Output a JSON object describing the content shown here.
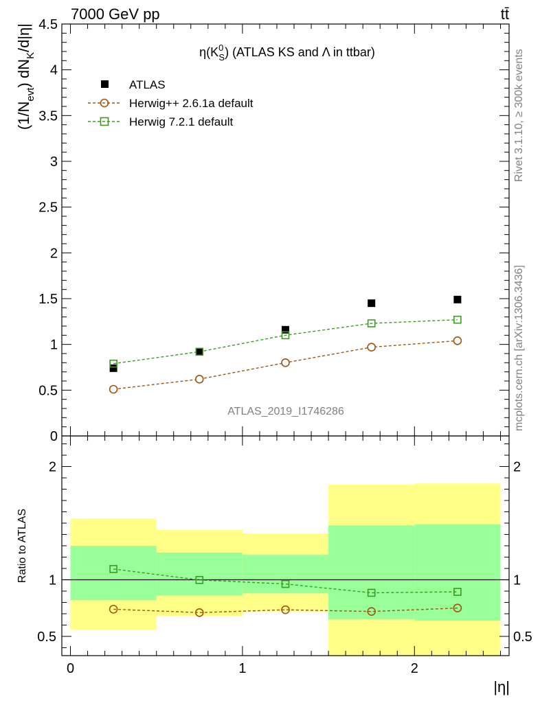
{
  "header": {
    "energy_label": "7000 GeV pp",
    "process_label": "tt̄"
  },
  "side": {
    "rivet": "Rivet 3.1.10, ≥ 300k events",
    "mcplots": "mcplots.cern.ch [arXiv:1306.3436]"
  },
  "watermark": "ATLAS_2019_I1746286",
  "colors": {
    "atlas": "#000000",
    "herwig261": "#a0520a",
    "herwig721": "#3c9a1e",
    "band_outer": "#ffff88",
    "band_inner": "#99ff99"
  },
  "chart_data": [
    {
      "type": "scatter",
      "title": "η(K⁰S) (ATLAS KS and Λ in ttbar)",
      "title_parts": {
        "eta": "η(K",
        "sup": "0",
        "sub": "S",
        "close": ")",
        "rest": " (ATLAS KS and Λ in ttbar)"
      },
      "ylabel_parts": {
        "a": "(1/N",
        "sub1": "evt",
        "b": ") dN",
        "sub2": "K",
        "c": "/d|η|"
      },
      "x_range": [
        -0.05,
        2.55
      ],
      "ylim": [
        0,
        4.5
      ],
      "yticks": [
        0,
        0.5,
        1,
        1.5,
        2,
        2.5,
        3,
        3.5,
        4,
        4.5
      ],
      "ytick_labels": [
        "0",
        "0.5",
        "1",
        "1.5",
        "2",
        "2.5",
        "3",
        "3.5",
        "4",
        "4.5"
      ],
      "legend_position": "top-left",
      "series": [
        {
          "name": "ATLAS",
          "marker": "filled-square",
          "x": [
            0.25,
            0.75,
            1.25,
            1.75,
            2.25
          ],
          "y": [
            0.74,
            0.92,
            1.16,
            1.45,
            1.49
          ]
        },
        {
          "name": "Herwig++ 2.6.1a default",
          "marker": "open-circle",
          "x": [
            0.25,
            0.75,
            1.25,
            1.75,
            2.25
          ],
          "y": [
            0.51,
            0.62,
            0.8,
            0.97,
            1.04
          ]
        },
        {
          "name": "Herwig 7.2.1 default",
          "marker": "open-square",
          "x": [
            0.25,
            0.75,
            1.25,
            1.75,
            2.25
          ],
          "y": [
            0.79,
            0.92,
            1.1,
            1.23,
            1.27
          ]
        }
      ]
    },
    {
      "type": "line",
      "ylabel": "Ratio to ATLAS",
      "xlabel": "|η|",
      "x_range": [
        -0.05,
        2.55
      ],
      "ylim": [
        0.33,
        2.27
      ],
      "xticks": [
        0,
        1,
        2
      ],
      "xtick_labels": [
        "0",
        "1",
        "2"
      ],
      "yticks": [
        0.5,
        1,
        2
      ],
      "ytick_labels": [
        "0.5",
        "1",
        "2"
      ],
      "bins": [
        [
          0,
          0.5
        ],
        [
          0.5,
          1.0
        ],
        [
          1.0,
          1.5
        ],
        [
          1.5,
          2.0
        ],
        [
          2.0,
          2.5
        ]
      ],
      "band_outer": {
        "low": [
          0.56,
          0.68,
          0.72,
          0.3,
          0.3
        ],
        "high": [
          1.54,
          1.44,
          1.41,
          1.84,
          1.85
        ]
      },
      "band_inner": {
        "low": [
          0.82,
          0.86,
          0.88,
          0.65,
          0.64
        ],
        "high": [
          1.3,
          1.24,
          1.22,
          1.48,
          1.49
        ]
      },
      "series": [
        {
          "name": "Herwig++ 2.6.1a default",
          "x": [
            0.25,
            0.75,
            1.25,
            1.75,
            2.25
          ],
          "y": [
            0.74,
            0.71,
            0.735,
            0.72,
            0.75
          ]
        },
        {
          "name": "Herwig 7.2.1 default",
          "x": [
            0.25,
            0.75,
            1.25,
            1.75,
            2.25
          ],
          "y": [
            1.095,
            0.998,
            0.963,
            0.885,
            0.893
          ]
        }
      ]
    }
  ]
}
